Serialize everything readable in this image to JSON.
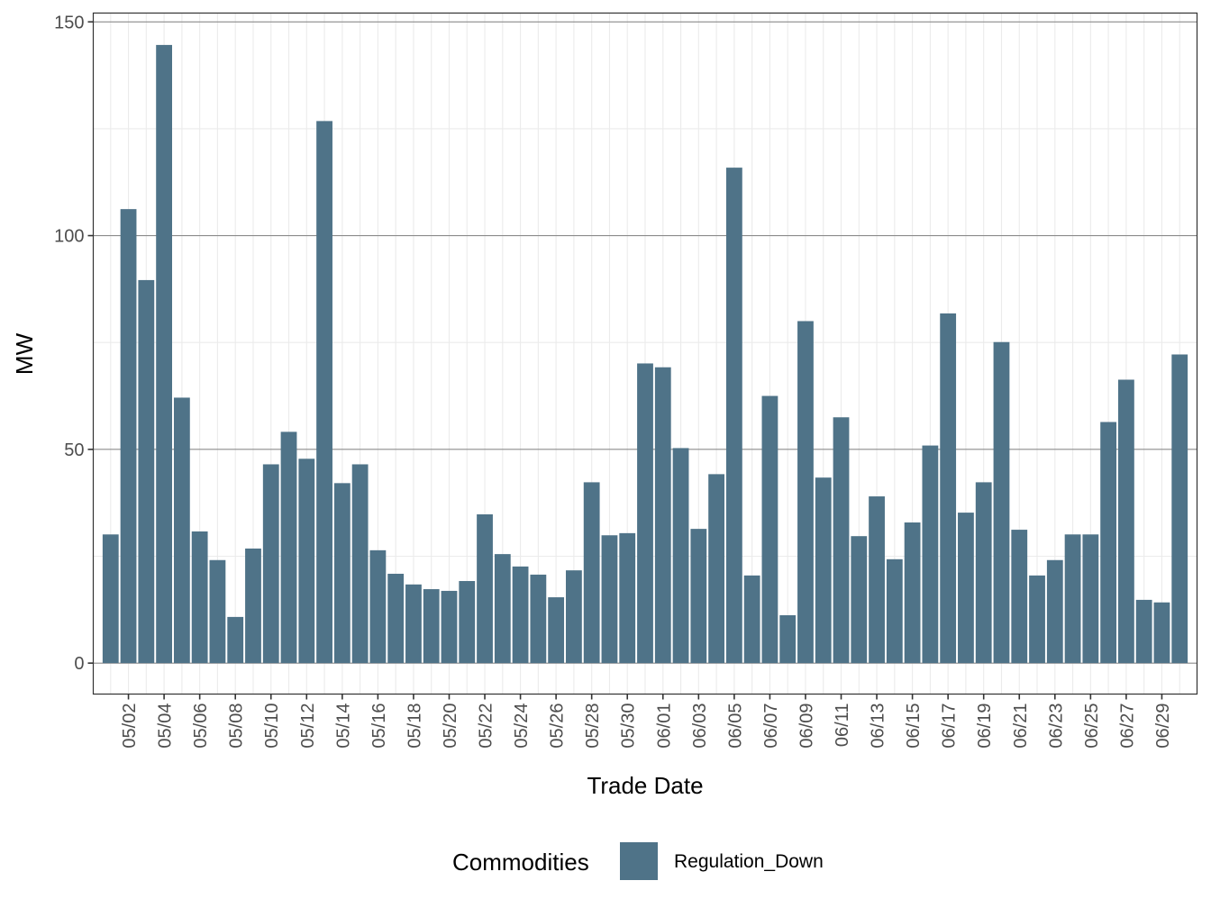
{
  "chart_data": {
    "type": "bar",
    "title": "",
    "xlabel": "Trade Date",
    "ylabel": "MW",
    "ylim": [
      -7.24,
      152.06
    ],
    "y_ticks": [
      0,
      50,
      100,
      150
    ],
    "y_tick_labels": [
      "0",
      "50",
      "100",
      "150"
    ],
    "grid": true,
    "legend": {
      "title": "Commodities",
      "position": "bottom",
      "entries": [
        {
          "label": "Regulation_Down",
          "color": "#4f7388"
        }
      ]
    },
    "categories": [
      "05/01",
      "05/02",
      "05/03",
      "05/04",
      "05/05",
      "05/06",
      "05/07",
      "05/08",
      "05/09",
      "05/10",
      "05/11",
      "05/12",
      "05/13",
      "05/14",
      "05/15",
      "05/16",
      "05/17",
      "05/18",
      "05/19",
      "05/20",
      "05/21",
      "05/22",
      "05/23",
      "05/24",
      "05/25",
      "05/26",
      "05/27",
      "05/28",
      "05/29",
      "05/30",
      "05/31",
      "06/01",
      "06/02",
      "06/03",
      "06/04",
      "06/05",
      "06/06",
      "06/07",
      "06/08",
      "06/09",
      "06/10",
      "06/11",
      "06/12",
      "06/13",
      "06/14",
      "06/15",
      "06/16",
      "06/17",
      "06/18",
      "06/19",
      "06/20",
      "06/21",
      "06/22",
      "06/23",
      "06/24",
      "06/25",
      "06/26",
      "06/27",
      "06/28",
      "06/29",
      "06/30"
    ],
    "x_tick_labels": [
      "05/02",
      "05/04",
      "05/06",
      "05/08",
      "05/10",
      "05/12",
      "05/14",
      "05/16",
      "05/18",
      "05/20",
      "05/22",
      "05/24",
      "05/26",
      "05/28",
      "05/30",
      "06/01",
      "06/03",
      "06/05",
      "06/07",
      "06/09",
      "06/11",
      "06/13",
      "06/15",
      "06/17",
      "06/19",
      "06/21",
      "06/23",
      "06/25",
      "06/27",
      "06/29"
    ],
    "series": [
      {
        "name": "Regulation_Down",
        "color": "#4f7388",
        "values": [
          30.1,
          106.2,
          89.6,
          144.6,
          62.1,
          30.8,
          24.1,
          10.8,
          26.8,
          46.5,
          54.1,
          47.8,
          126.8,
          42.1,
          46.5,
          26.4,
          20.9,
          18.4,
          17.3,
          16.9,
          19.2,
          34.8,
          25.5,
          22.6,
          20.7,
          15.4,
          21.7,
          42.3,
          29.9,
          30.4,
          70.1,
          69.2,
          50.3,
          31.4,
          44.2,
          115.9,
          20.5,
          62.5,
          11.2,
          80.0,
          43.4,
          57.5,
          29.7,
          39.0,
          24.3,
          32.9,
          50.9,
          81.8,
          35.2,
          42.3,
          75.1,
          31.2,
          20.5,
          24.1,
          30.1,
          30.1,
          56.4,
          66.3,
          14.8,
          14.2,
          72.2
        ]
      }
    ]
  }
}
